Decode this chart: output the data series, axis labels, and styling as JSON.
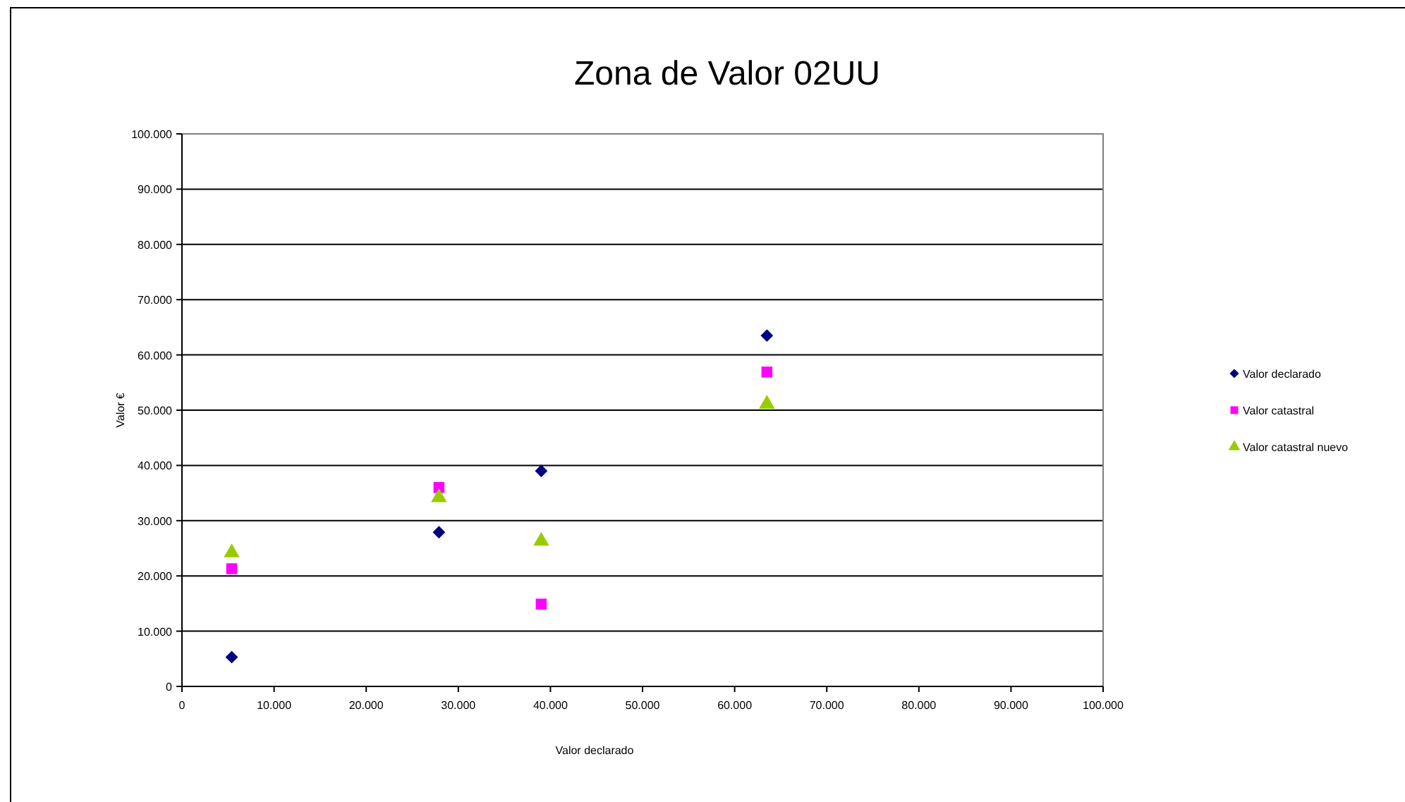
{
  "chart_data": {
    "type": "scatter",
    "title": "Zona de Valor 02UU",
    "xlabel": "Valor declarado",
    "ylabel": "Valor €",
    "xlim": [
      0,
      100000
    ],
    "ylim": [
      0,
      100000
    ],
    "xticks": [
      0,
      {
        "value": 10000,
        "label": "10.000"
      },
      {
        "value": 20000,
        "label": "20.000"
      },
      {
        "value": 30000,
        "label": "30.000"
      },
      {
        "value": 40000,
        "label": "40.000"
      },
      {
        "value": 50000,
        "label": "50.000"
      },
      {
        "value": 60000,
        "label": "60.000"
      },
      {
        "value": 70000,
        "label": "70.000"
      },
      {
        "value": 80000,
        "label": "80.000"
      },
      {
        "value": 90000,
        "label": "90.000"
      },
      {
        "value": 100000,
        "label": "100.000"
      }
    ],
    "yticks": [
      0,
      {
        "value": 10000,
        "label": "10.000"
      },
      {
        "value": 20000,
        "label": "20.000"
      },
      {
        "value": 30000,
        "label": "30.000"
      },
      {
        "value": 40000,
        "label": "40.000"
      },
      {
        "value": 50000,
        "label": "50.000"
      },
      {
        "value": 60000,
        "label": "60.000"
      },
      {
        "value": 70000,
        "label": "70.000"
      },
      {
        "value": 80000,
        "label": "80.000"
      },
      {
        "value": 90000,
        "label": "90.000"
      },
      {
        "value": 100000,
        "label": "100.000"
      }
    ],
    "x": [
      5400,
      27900,
      39000,
      63500
    ],
    "grid": "y",
    "legend": "right",
    "series": [
      {
        "name": "Valor declarado",
        "color": "#000080",
        "marker": "diamond",
        "values": [
          5300,
          27900,
          39000,
          63500
        ]
      },
      {
        "name": "Valor catastral",
        "color": "#ff00ff",
        "marker": "square",
        "values": [
          21300,
          36000,
          14900,
          56900
        ]
      },
      {
        "name": "Valor catastral nuevo",
        "color": "#99cc00",
        "marker": "triangle",
        "values": [
          24200,
          34200,
          26300,
          51100
        ]
      }
    ]
  }
}
